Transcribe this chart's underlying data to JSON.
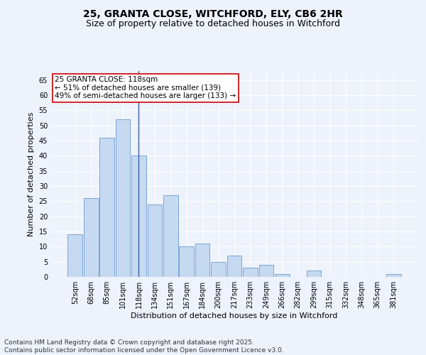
{
  "title_line1": "25, GRANTA CLOSE, WITCHFORD, ELY, CB6 2HR",
  "title_line2": "Size of property relative to detached houses in Witchford",
  "xlabel": "Distribution of detached houses by size in Witchford",
  "ylabel": "Number of detached properties",
  "categories": [
    "52sqm",
    "68sqm",
    "85sqm",
    "101sqm",
    "118sqm",
    "134sqm",
    "151sqm",
    "167sqm",
    "184sqm",
    "200sqm",
    "217sqm",
    "233sqm",
    "249sqm",
    "266sqm",
    "282sqm",
    "299sqm",
    "315sqm",
    "332sqm",
    "348sqm",
    "365sqm",
    "381sqm"
  ],
  "values": [
    14,
    26,
    46,
    52,
    40,
    24,
    27,
    10,
    11,
    5,
    7,
    3,
    4,
    1,
    0,
    2,
    0,
    0,
    0,
    0,
    1
  ],
  "bar_color": "#c5d9f0",
  "bar_edge_color": "#7aa6d4",
  "highlight_index": 4,
  "highlight_line_color": "#3a5fa8",
  "annotation_text": "25 GRANTA CLOSE: 118sqm\n← 51% of detached houses are smaller (139)\n49% of semi-detached houses are larger (133) →",
  "annotation_box_color": "#ffffff",
  "annotation_box_edge_color": "#cc0000",
  "ylim": [
    0,
    68
  ],
  "yticks": [
    0,
    5,
    10,
    15,
    20,
    25,
    30,
    35,
    40,
    45,
    50,
    55,
    60,
    65
  ],
  "background_color": "#eef2fb",
  "grid_color": "#ffffff",
  "footer_line1": "Contains HM Land Registry data © Crown copyright and database right 2025.",
  "footer_line2": "Contains public sector information licensed under the Open Government Licence v3.0.",
  "title_fontsize": 10,
  "subtitle_fontsize": 9,
  "axis_label_fontsize": 8,
  "tick_fontsize": 7,
  "annotation_fontsize": 7.5,
  "footer_fontsize": 6.5
}
